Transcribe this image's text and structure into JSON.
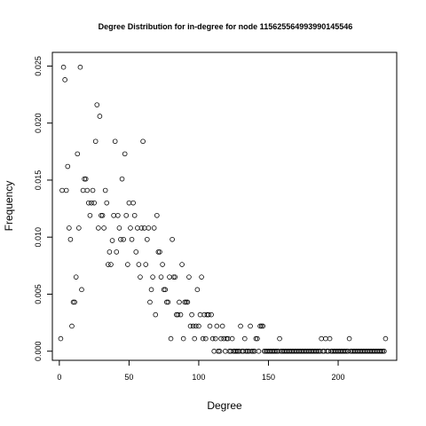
{
  "chart_data": {
    "type": "scatter",
    "title": "Degree Distribution for in-degree for node 115625564993990145546",
    "xlabel": "Degree",
    "ylabel": "Frequency",
    "xlim": [
      -5,
      242
    ],
    "ylim": [
      -0.0008,
      0.0262
    ],
    "xticks": [
      0,
      50,
      100,
      150,
      200
    ],
    "xtick_labels": [
      "0",
      "50",
      "100",
      "150",
      "200"
    ],
    "yticks": [
      0.0,
      0.005,
      0.01,
      0.015,
      0.02,
      0.025
    ],
    "ytick_labels": [
      "0.000",
      "0.005",
      "0.010",
      "0.015",
      "0.020",
      "0.025"
    ],
    "grid": false,
    "legend": "none",
    "marker": "open-circle",
    "points": [
      [
        1,
        0.0011
      ],
      [
        2,
        0.0141
      ],
      [
        3,
        0.0249
      ],
      [
        4,
        0.0238
      ],
      [
        5,
        0.0141
      ],
      [
        6,
        0.0162
      ],
      [
        7,
        0.0108
      ],
      [
        8,
        0.0098
      ],
      [
        9,
        0.0022
      ],
      [
        10,
        0.0043
      ],
      [
        11,
        0.0043
      ],
      [
        12,
        0.0065
      ],
      [
        13,
        0.0173
      ],
      [
        14,
        0.0108
      ],
      [
        15,
        0.0249
      ],
      [
        16,
        0.0054
      ],
      [
        17,
        0.0141
      ],
      [
        18,
        0.0151
      ],
      [
        19,
        0.0151
      ],
      [
        20,
        0.0141
      ],
      [
        21,
        0.013
      ],
      [
        22,
        0.0119
      ],
      [
        23,
        0.013
      ],
      [
        24,
        0.0141
      ],
      [
        25,
        0.013
      ],
      [
        26,
        0.0184
      ],
      [
        27,
        0.0216
      ],
      [
        28,
        0.0108
      ],
      [
        29,
        0.0206
      ],
      [
        30,
        0.0119
      ],
      [
        31,
        0.0119
      ],
      [
        32,
        0.0108
      ],
      [
        33,
        0.0141
      ],
      [
        34,
        0.013
      ],
      [
        35,
        0.0076
      ],
      [
        36,
        0.0087
      ],
      [
        37,
        0.0076
      ],
      [
        38,
        0.0097
      ],
      [
        39,
        0.0119
      ],
      [
        40,
        0.0184
      ],
      [
        41,
        0.0087
      ],
      [
        42,
        0.0119
      ],
      [
        43,
        0.0108
      ],
      [
        44,
        0.0098
      ],
      [
        45,
        0.0151
      ],
      [
        46,
        0.0098
      ],
      [
        47,
        0.0173
      ],
      [
        48,
        0.0119
      ],
      [
        49,
        0.0076
      ],
      [
        50,
        0.013
      ],
      [
        51,
        0.0108
      ],
      [
        52,
        0.0098
      ],
      [
        53,
        0.013
      ],
      [
        54,
        0.0119
      ],
      [
        55,
        0.0087
      ],
      [
        56,
        0.0108
      ],
      [
        57,
        0.0076
      ],
      [
        58,
        0.0065
      ],
      [
        59,
        0.0108
      ],
      [
        60,
        0.0184
      ],
      [
        61,
        0.0108
      ],
      [
        62,
        0.0076
      ],
      [
        63,
        0.0098
      ],
      [
        64,
        0.0108
      ],
      [
        65,
        0.0043
      ],
      [
        66,
        0.0054
      ],
      [
        67,
        0.0065
      ],
      [
        68,
        0.0108
      ],
      [
        69,
        0.0032
      ],
      [
        70,
        0.0119
      ],
      [
        71,
        0.0087
      ],
      [
        72,
        0.0087
      ],
      [
        73,
        0.0065
      ],
      [
        74,
        0.0076
      ],
      [
        75,
        0.0054
      ],
      [
        76,
        0.0054
      ],
      [
        77,
        0.0043
      ],
      [
        78,
        0.0043
      ],
      [
        79,
        0.0065
      ],
      [
        80,
        0.0011
      ],
      [
        81,
        0.0098
      ],
      [
        82,
        0.0065
      ],
      [
        83,
        0.0065
      ],
      [
        84,
        0.0032
      ],
      [
        85,
        0.0032
      ],
      [
        86,
        0.0043
      ],
      [
        87,
        0.0032
      ],
      [
        88,
        0.0076
      ],
      [
        89,
        0.0011
      ],
      [
        90,
        0.0043
      ],
      [
        91,
        0.0043
      ],
      [
        92,
        0.0043
      ],
      [
        93,
        0.0065
      ],
      [
        94,
        0.0022
      ],
      [
        95,
        0.0032
      ],
      [
        96,
        0.0022
      ],
      [
        97,
        0.0011
      ],
      [
        98,
        0.0022
      ],
      [
        99,
        0.0054
      ],
      [
        100,
        0.0022
      ],
      [
        101,
        0.0032
      ],
      [
        102,
        0.0065
      ],
      [
        103,
        0.0011
      ],
      [
        104,
        0.0032
      ],
      [
        105,
        0.0011
      ],
      [
        106,
        0.0032
      ],
      [
        107,
        0.0032
      ],
      [
        108,
        0.0022
      ],
      [
        109,
        0.0032
      ],
      [
        110,
        0.0011
      ],
      [
        111,
        0.0
      ],
      [
        112,
        0.0011
      ],
      [
        113,
        0.0022
      ],
      [
        114,
        0.0
      ],
      [
        115,
        0.0
      ],
      [
        116,
        0.0011
      ],
      [
        117,
        0.0022
      ],
      [
        118,
        0.0011
      ],
      [
        119,
        0.0
      ],
      [
        120,
        0.0011
      ],
      [
        121,
        0.0011
      ],
      [
        122,
        0.0
      ],
      [
        123,
        0.0
      ],
      [
        124,
        0.0011
      ],
      [
        125,
        0.0
      ],
      [
        126,
        0.0
      ],
      [
        127,
        0.0
      ],
      [
        128,
        0.0
      ],
      [
        129,
        0.0
      ],
      [
        130,
        0.0022
      ],
      [
        131,
        0.0
      ],
      [
        132,
        0.0
      ],
      [
        133,
        0.0011
      ],
      [
        134,
        0.0
      ],
      [
        135,
        0.0
      ],
      [
        136,
        0.0
      ],
      [
        137,
        0.0022
      ],
      [
        138,
        0.0
      ],
      [
        139,
        0.0
      ],
      [
        140,
        0.0
      ],
      [
        141,
        0.0011
      ],
      [
        142,
        0.0011
      ],
      [
        143,
        0.0
      ],
      [
        144,
        0.0022
      ],
      [
        145,
        0.0022
      ],
      [
        146,
        0.0022
      ],
      [
        147,
        0.0
      ],
      [
        148,
        0.0
      ],
      [
        149,
        0.0
      ],
      [
        150,
        0.0
      ],
      [
        151,
        0.0
      ],
      [
        152,
        0.0
      ],
      [
        153,
        0.0
      ],
      [
        154,
        0.0
      ],
      [
        155,
        0.0
      ],
      [
        156,
        0.0
      ],
      [
        157,
        0.0
      ],
      [
        158,
        0.0011
      ],
      [
        159,
        0.0
      ],
      [
        160,
        0.0
      ],
      [
        161,
        0.0
      ],
      [
        162,
        0.0
      ],
      [
        163,
        0.0
      ],
      [
        164,
        0.0
      ],
      [
        165,
        0.0
      ],
      [
        166,
        0.0
      ],
      [
        167,
        0.0
      ],
      [
        168,
        0.0
      ],
      [
        169,
        0.0
      ],
      [
        170,
        0.0
      ],
      [
        171,
        0.0
      ],
      [
        172,
        0.0
      ],
      [
        173,
        0.0
      ],
      [
        174,
        0.0
      ],
      [
        175,
        0.0
      ],
      [
        176,
        0.0
      ],
      [
        177,
        0.0
      ],
      [
        178,
        0.0
      ],
      [
        179,
        0.0
      ],
      [
        180,
        0.0
      ],
      [
        181,
        0.0
      ],
      [
        182,
        0.0
      ],
      [
        183,
        0.0
      ],
      [
        184,
        0.0
      ],
      [
        185,
        0.0
      ],
      [
        186,
        0.0
      ],
      [
        187,
        0.0
      ],
      [
        188,
        0.0011
      ],
      [
        189,
        0.0
      ],
      [
        190,
        0.0
      ],
      [
        191,
        0.0011
      ],
      [
        192,
        0.0
      ],
      [
        193,
        0.0
      ],
      [
        194,
        0.0011
      ],
      [
        195,
        0.0
      ],
      [
        196,
        0.0
      ],
      [
        197,
        0.0
      ],
      [
        198,
        0.0
      ],
      [
        199,
        0.0
      ],
      [
        200,
        0.0
      ],
      [
        201,
        0.0
      ],
      [
        202,
        0.0
      ],
      [
        203,
        0.0
      ],
      [
        204,
        0.0
      ],
      [
        205,
        0.0
      ],
      [
        206,
        0.0
      ],
      [
        207,
        0.0
      ],
      [
        208,
        0.0011
      ],
      [
        209,
        0.0
      ],
      [
        210,
        0.0
      ],
      [
        211,
        0.0
      ],
      [
        212,
        0.0
      ],
      [
        213,
        0.0
      ],
      [
        214,
        0.0
      ],
      [
        215,
        0.0
      ],
      [
        216,
        0.0
      ],
      [
        217,
        0.0
      ],
      [
        218,
        0.0
      ],
      [
        219,
        0.0
      ],
      [
        220,
        0.0
      ],
      [
        221,
        0.0
      ],
      [
        222,
        0.0
      ],
      [
        223,
        0.0
      ],
      [
        224,
        0.0
      ],
      [
        225,
        0.0
      ],
      [
        226,
        0.0
      ],
      [
        227,
        0.0
      ],
      [
        228,
        0.0
      ],
      [
        229,
        0.0
      ],
      [
        230,
        0.0
      ],
      [
        231,
        0.0
      ],
      [
        232,
        0.0
      ],
      [
        233,
        0.0
      ],
      [
        234,
        0.0011
      ]
    ]
  }
}
